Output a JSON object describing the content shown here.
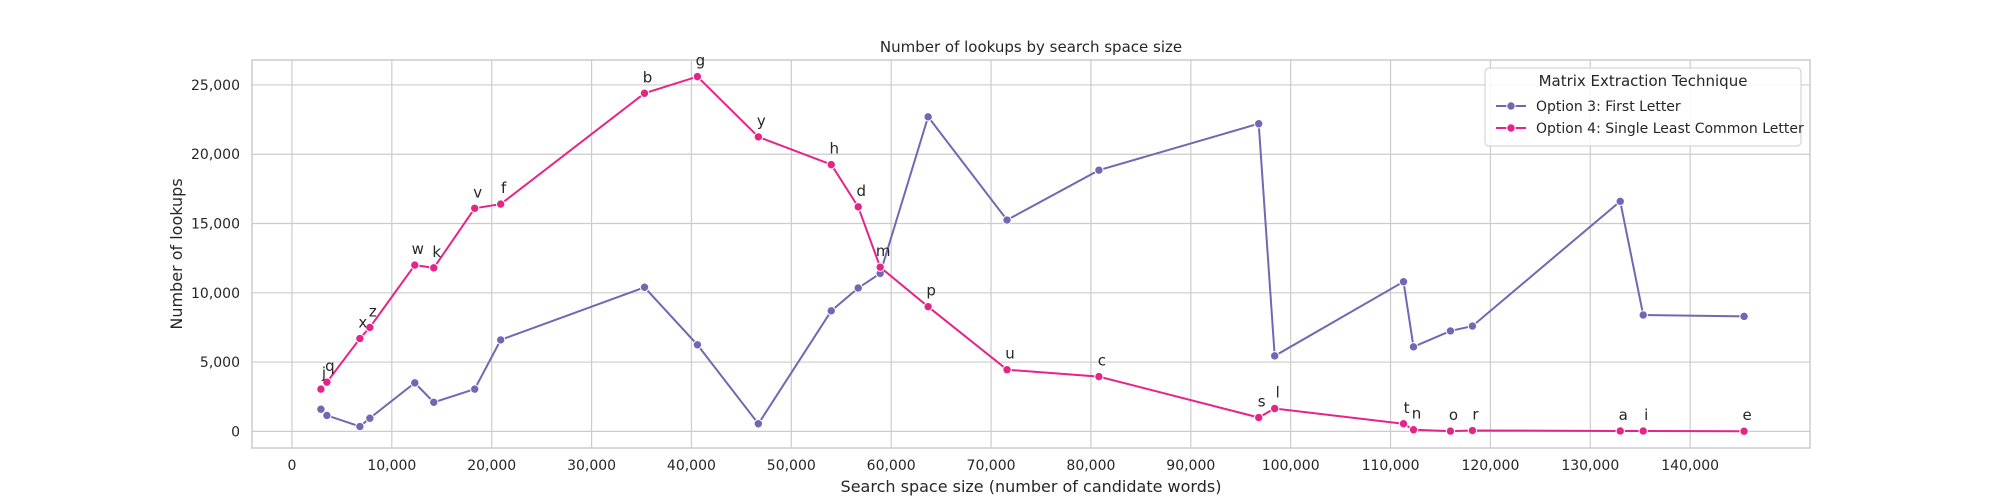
{
  "chart_data": {
    "type": "line",
    "title": "Number of lookups by search space size",
    "xlabel": "Search space size (number of candidate words)",
    "ylabel": "Number of lookups",
    "xlim": [
      -4000,
      152000
    ],
    "ylim": [
      -1200,
      26800
    ],
    "xticks": [
      0,
      10000,
      20000,
      30000,
      40000,
      50000,
      60000,
      70000,
      80000,
      90000,
      100000,
      110000,
      120000,
      130000,
      140000
    ],
    "xtick_labels": [
      "0",
      "10,000",
      "20,000",
      "30,000",
      "40,000",
      "50,000",
      "60,000",
      "70,000",
      "80,000",
      "90,000",
      "100,000",
      "110,000",
      "120,000",
      "130,000",
      "140,000"
    ],
    "yticks": [
      0,
      5000,
      10000,
      15000,
      20000,
      25000
    ],
    "ytick_labels": [
      "0",
      "5,000",
      "10,000",
      "15,000",
      "20,000",
      "25,000"
    ],
    "grid": true,
    "legend": {
      "title": "Matrix Extraction Technique",
      "placement": "top-right"
    },
    "series": [
      {
        "name": "Option 3: First Letter",
        "color": "#7366b4",
        "points": [
          [
            2900,
            1600
          ],
          [
            3500,
            1150
          ],
          [
            6800,
            350
          ],
          [
            7800,
            950
          ],
          [
            12300,
            3500
          ],
          [
            14200,
            2100
          ],
          [
            18300,
            3050
          ],
          [
            20900,
            6600
          ],
          [
            35300,
            10400
          ],
          [
            40600,
            6250
          ],
          [
            46700,
            550
          ],
          [
            54000,
            8700
          ],
          [
            56700,
            10350
          ],
          [
            58900,
            11400
          ],
          [
            63700,
            22700
          ],
          [
            71600,
            15250
          ],
          [
            80800,
            18850
          ],
          [
            96800,
            22200
          ],
          [
            98400,
            5450
          ],
          [
            111300,
            10800
          ],
          [
            112300,
            6100
          ],
          [
            116000,
            7250
          ],
          [
            118200,
            7600
          ],
          [
            133000,
            16600
          ],
          [
            135300,
            8400
          ],
          [
            145400,
            8300
          ]
        ]
      },
      {
        "name": "Option 4: Single Least Common Letter",
        "color": "#e5248a",
        "points": [
          [
            2900,
            3050,
            "j"
          ],
          [
            3500,
            3550,
            "q"
          ],
          [
            6800,
            6700,
            "x"
          ],
          [
            7800,
            7500,
            "z"
          ],
          [
            12300,
            12000,
            "w"
          ],
          [
            14200,
            11800,
            "k"
          ],
          [
            18300,
            16100,
            "v"
          ],
          [
            20900,
            16400,
            "f"
          ],
          [
            35300,
            24400,
            "b"
          ],
          [
            40600,
            25600,
            "g"
          ],
          [
            46700,
            21250,
            "y"
          ],
          [
            54000,
            19250,
            "h"
          ],
          [
            56700,
            16200,
            "d"
          ],
          [
            58900,
            11850,
            "m"
          ],
          [
            63700,
            9000,
            "p"
          ],
          [
            71600,
            4450,
            "u"
          ],
          [
            80800,
            3950,
            "c"
          ],
          [
            96800,
            1000,
            "s"
          ],
          [
            98400,
            1650,
            "l"
          ],
          [
            111300,
            550,
            "t"
          ],
          [
            112300,
            120,
            "n"
          ],
          [
            116000,
            20,
            "o"
          ],
          [
            118200,
            60,
            "r"
          ],
          [
            133000,
            30,
            "a"
          ],
          [
            135300,
            30,
            "i"
          ],
          [
            145400,
            10,
            "e"
          ]
        ]
      }
    ]
  }
}
